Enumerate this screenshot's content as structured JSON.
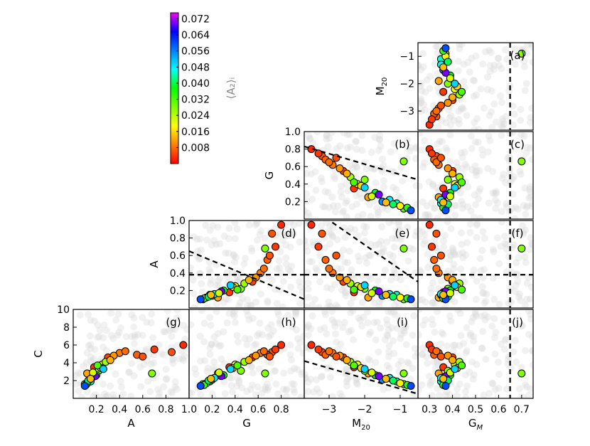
{
  "chart_data": {
    "type": "scatter",
    "title": "",
    "colorbar": {
      "label": "⟨A₂⟩ᵢ",
      "range": [
        0.0,
        0.075
      ],
      "ticks": [
        "0.072",
        "0.064",
        "0.056",
        "0.048",
        "0.040",
        "0.032",
        "0.024",
        "0.016",
        "0.008"
      ],
      "colors": [
        "#ff0000",
        "#ff8000",
        "#ffff00",
        "#80ff00",
        "#00ff00",
        "#00ffff",
        "#0080ff",
        "#0000ff",
        "#ff00ff"
      ]
    },
    "panels": [
      {
        "id": "a",
        "label": "(a)",
        "x_var": "G_M",
        "y_var": "M20",
        "xlim": [
          0.25,
          0.75
        ],
        "ylim": [
          -3.7,
          -0.5
        ],
        "y_ticks": [
          "−1",
          "−2",
          "−3"
        ],
        "y_tick_values": [
          -1,
          -2,
          -3
        ],
        "ylabel": "M20",
        "dashed_lines": [
          {
            "x": 0.65
          }
        ]
      },
      {
        "id": "b",
        "label": "(b)",
        "x_var": "M20",
        "y_var": "G",
        "xlim": [
          -3.7,
          -0.5
        ],
        "ylim": [
          0.0,
          1.0
        ],
        "y_ticks": [
          "1.0",
          "0.8",
          "0.6",
          "0.4",
          "0.2"
        ],
        "y_tick_values": [
          1.0,
          0.8,
          0.6,
          0.4,
          0.2
        ],
        "ylabel": "G",
        "dashed_lines": [
          {
            "x1": -3.7,
            "y1": 0.83,
            "x2": -0.5,
            "y2": 0.45
          }
        ]
      },
      {
        "id": "c",
        "label": "(c)",
        "x_var": "G_M",
        "y_var": "G",
        "xlim": [
          0.25,
          0.75
        ],
        "ylim": [
          0.0,
          1.0
        ],
        "dashed_lines": [
          {
            "x": 0.65
          }
        ]
      },
      {
        "id": "d",
        "label": "(d)",
        "x_var": "G",
        "y_var": "A",
        "xlim": [
          0.0,
          1.0
        ],
        "ylim": [
          0.0,
          1.0
        ],
        "y_ticks": [
          "1.0",
          "0.8",
          "0.6",
          "0.4",
          "0.2"
        ],
        "y_tick_values": [
          1.0,
          0.8,
          0.6,
          0.4,
          0.2
        ],
        "ylabel": "A",
        "dashed_lines": [
          {
            "y": 0.38
          },
          {
            "x1": 0.0,
            "y1": 0.65,
            "x2": 1.0,
            "y2": 0.1
          }
        ]
      },
      {
        "id": "e",
        "label": "(e)",
        "x_var": "M20",
        "y_var": "A",
        "xlim": [
          -3.7,
          -0.5
        ],
        "ylim": [
          0.0,
          1.0
        ],
        "dashed_lines": [
          {
            "y": 0.38
          },
          {
            "x1": -3.7,
            "y1": 1.2,
            "x2": -0.5,
            "y2": 0.3
          }
        ]
      },
      {
        "id": "f",
        "label": "(f)",
        "x_var": "G_M",
        "y_var": "A",
        "xlim": [
          0.25,
          0.75
        ],
        "ylim": [
          0.0,
          1.0
        ],
        "dashed_lines": [
          {
            "y": 0.38
          },
          {
            "x": 0.65
          }
        ]
      },
      {
        "id": "g",
        "label": "(g)",
        "x_var": "A",
        "y_var": "C",
        "xlim": [
          0.0,
          1.0
        ],
        "ylim": [
          0.0,
          10.0
        ],
        "y_ticks": [
          "10",
          "8",
          "6",
          "4",
          "2"
        ],
        "y_tick_values": [
          10,
          8,
          6,
          4,
          2
        ],
        "ylabel": "C",
        "x_ticks": [
          "0.2",
          "0.4",
          "0.6",
          "0.8",
          "1.0"
        ],
        "x_tick_values": [
          0.2,
          0.4,
          0.6,
          0.8,
          1.0
        ],
        "xlabel": "A"
      },
      {
        "id": "h",
        "label": "(h)",
        "x_var": "G",
        "y_var": "C",
        "xlim": [
          0.0,
          1.0
        ],
        "ylim": [
          0.0,
          10.0
        ],
        "x_ticks": [
          "0.2",
          "0.4",
          "0.6",
          "0.8"
        ],
        "x_tick_values": [
          0.2,
          0.4,
          0.6,
          0.8
        ],
        "xlabel": "G"
      },
      {
        "id": "i",
        "label": "(i)",
        "x_var": "M20",
        "y_var": "C",
        "xlim": [
          -3.7,
          -0.5
        ],
        "ylim": [
          0.0,
          10.0
        ],
        "x_ticks": [
          "−3",
          "−2",
          "−1"
        ],
        "x_tick_values": [
          -3,
          -2,
          -1
        ],
        "xlabel": "M20",
        "dashed_lines": [
          {
            "x1": -3.7,
            "y1": 4.2,
            "x2": -0.5,
            "y2": 0.5
          }
        ]
      },
      {
        "id": "j",
        "label": "(j)",
        "x_var": "G_M",
        "y_var": "C",
        "xlim": [
          0.25,
          0.75
        ],
        "ylim": [
          0.0,
          10.0
        ],
        "x_ticks": [
          "0.3",
          "0.4",
          "0.5",
          "0.6",
          "0.7"
        ],
        "x_tick_values": [
          0.3,
          0.4,
          0.5,
          0.6,
          0.7
        ],
        "xlabel": "G_M",
        "dashed_lines": [
          {
            "x": 0.65
          }
        ]
      }
    ],
    "points": [
      {
        "A": 0.18,
        "G": 0.35,
        "M20": -2.3,
        "C": 3.5,
        "G_M": 0.36,
        "A2": 0.004
      },
      {
        "A": 0.12,
        "G": 0.25,
        "M20": -1.9,
        "C": 2.8,
        "G_M": 0.34,
        "A2": 0.012
      },
      {
        "A": 0.85,
        "G": 0.72,
        "M20": -3.2,
        "C": 5.2,
        "G_M": 0.33,
        "A2": 0.006
      },
      {
        "A": 0.22,
        "G": 0.45,
        "M20": -2.0,
        "C": 3.1,
        "G_M": 0.38,
        "A2": 0.028
      },
      {
        "A": 0.15,
        "G": 0.18,
        "M20": -1.1,
        "C": 1.9,
        "G_M": 0.35,
        "A2": 0.045
      },
      {
        "A": 0.3,
        "G": 0.55,
        "M20": -2.6,
        "C": 4.6,
        "G_M": 0.4,
        "A2": 0.005
      },
      {
        "A": 0.1,
        "G": 0.12,
        "M20": -0.9,
        "C": 1.6,
        "G_M": 0.37,
        "A2": 0.03
      },
      {
        "A": 0.95,
        "G": 0.8,
        "M20": -3.5,
        "C": 6.0,
        "G_M": 0.3,
        "A2": 0.003
      },
      {
        "A": 0.25,
        "G": 0.4,
        "M20": -2.2,
        "C": 3.8,
        "G_M": 0.41,
        "A2": 0.02
      },
      {
        "A": 0.14,
        "G": 0.2,
        "M20": -1.5,
        "C": 2.1,
        "G_M": 0.36,
        "A2": 0.055
      },
      {
        "A": 0.4,
        "G": 0.62,
        "M20": -2.9,
        "C": 5.1,
        "G_M": 0.34,
        "A2": 0.009
      },
      {
        "A": 0.2,
        "G": 0.3,
        "M20": -1.7,
        "C": 2.6,
        "G_M": 0.39,
        "A2": 0.038
      },
      {
        "A": 0.12,
        "G": 0.15,
        "M20": -1.0,
        "C": 1.7,
        "G_M": 0.37,
        "A2": 0.018
      },
      {
        "A": 0.55,
        "G": 0.68,
        "M20": -3.1,
        "C": 4.9,
        "G_M": 0.32,
        "A2": 0.007
      },
      {
        "A": 0.28,
        "G": 0.48,
        "M20": -2.4,
        "C": 4.1,
        "G_M": 0.43,
        "A2": 0.026
      },
      {
        "A": 0.16,
        "G": 0.22,
        "M20": -1.3,
        "C": 2.3,
        "G_M": 0.35,
        "A2": 0.048
      },
      {
        "A": 0.35,
        "G": 0.58,
        "M20": -2.7,
        "C": 4.8,
        "G_M": 0.38,
        "A2": 0.011
      },
      {
        "A": 0.11,
        "G": 0.13,
        "M20": -0.8,
        "C": 1.5,
        "G_M": 0.36,
        "A2": 0.034
      },
      {
        "A": 0.24,
        "G": 0.38,
        "M20": -2.1,
        "C": 3.4,
        "G_M": 0.42,
        "A2": 0.016
      },
      {
        "A": 0.19,
        "G": 0.28,
        "M20": -1.6,
        "C": 2.5,
        "G_M": 0.37,
        "A2": 0.07
      },
      {
        "A": 0.7,
        "G": 0.75,
        "M20": -3.3,
        "C": 5.5,
        "G_M": 0.31,
        "A2": 0.004
      },
      {
        "A": 0.13,
        "G": 0.17,
        "M20": -1.2,
        "C": 2.0,
        "G_M": 0.38,
        "A2": 0.041
      },
      {
        "A": 0.32,
        "G": 0.52,
        "M20": -2.5,
        "C": 4.3,
        "G_M": 0.4,
        "A2": 0.013
      },
      {
        "A": 0.17,
        "G": 0.26,
        "M20": -1.8,
        "C": 2.9,
        "G_M": 0.39,
        "A2": 0.022
      },
      {
        "A": 0.1,
        "G": 0.1,
        "M20": -0.7,
        "C": 1.4,
        "G_M": 0.37,
        "A2": 0.06
      },
      {
        "A": 0.45,
        "G": 0.65,
        "M20": -3.0,
        "C": 5.3,
        "G_M": 0.33,
        "A2": 0.008
      },
      {
        "A": 0.21,
        "G": 0.42,
        "M20": -2.3,
        "C": 3.7,
        "G_M": 0.44,
        "A2": 0.032
      },
      {
        "A": 0.15,
        "G": 0.19,
        "M20": -1.4,
        "C": 2.2,
        "G_M": 0.36,
        "A2": 0.014
      },
      {
        "A": 0.6,
        "G": 0.7,
        "M20": -2.8,
        "C": 4.7,
        "G_M": 0.35,
        "A2": 0.006
      },
      {
        "A": 0.26,
        "G": 0.36,
        "M20": -2.0,
        "C": 3.3,
        "G_M": 0.41,
        "A2": 0.05
      },
      {
        "A": 0.68,
        "G": 0.66,
        "M20": -0.9,
        "C": 2.8,
        "G_M": 0.7,
        "A2": 0.028
      }
    ]
  }
}
